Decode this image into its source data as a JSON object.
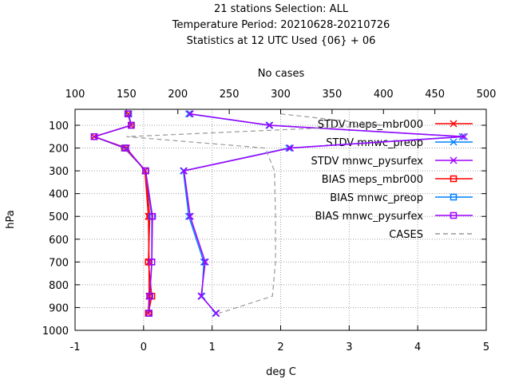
{
  "chart_data": {
    "type": "line",
    "title_lines": [
      "21 stations Selection: ALL",
      "Temperature  Period: 20210628-20210726",
      "Statistics at 12 UTC  Used {06} + 06"
    ],
    "xlabel": "deg C",
    "ylabel": "hPa",
    "x2label": "No cases",
    "xlim": [
      -1,
      5
    ],
    "ylim": [
      1000,
      30
    ],
    "x2lim": [
      100,
      500
    ],
    "x_ticks": [
      "-1",
      "0",
      "1",
      "2",
      "3",
      "4",
      "5"
    ],
    "y_ticks": [
      "100",
      "200",
      "300",
      "400",
      "500",
      "600",
      "700",
      "800",
      "900",
      "1000"
    ],
    "x2_ticks": [
      "100",
      "150",
      "200",
      "250",
      "300",
      "350",
      "400",
      "450",
      "500"
    ],
    "grid": true,
    "legend_position": "top-right",
    "series": [
      {
        "name": "STDV meps_mbr000",
        "color": "#ff0000",
        "marker": "x",
        "points": [
          [
            -0.22,
            50
          ],
          [
            -0.18,
            100
          ],
          [
            -0.72,
            150
          ],
          [
            -0.25,
            200
          ],
          [
            0.02,
            300
          ],
          [
            0.07,
            500
          ],
          [
            0.08,
            700
          ],
          [
            0.08,
            850
          ],
          [
            0.07,
            925
          ]
        ]
      },
      {
        "name": "STDV mnwc_preop",
        "color": "#0080ff",
        "marker": "x",
        "points": [
          [
            0.66,
            50
          ],
          [
            1.83,
            100
          ],
          [
            4.65,
            150
          ],
          [
            2.12,
            200
          ],
          [
            0.58,
            300
          ],
          [
            0.66,
            500
          ],
          [
            0.88,
            700
          ],
          [
            0.85,
            850
          ],
          [
            1.05,
            925
          ]
        ]
      },
      {
        "name": "STDV mnwc_pysurfex",
        "color": "#a000ff",
        "marker": "x",
        "points": [
          [
            0.68,
            50
          ],
          [
            1.84,
            100
          ],
          [
            4.68,
            150
          ],
          [
            2.14,
            200
          ],
          [
            0.59,
            300
          ],
          [
            0.68,
            500
          ],
          [
            0.9,
            700
          ],
          [
            0.84,
            850
          ],
          [
            1.06,
            925
          ]
        ]
      },
      {
        "name": "BIAS meps_mbr000",
        "color": "#ff0000",
        "marker": "square",
        "points": [
          [
            -0.22,
            50
          ],
          [
            -0.18,
            100
          ],
          [
            -0.72,
            150
          ],
          [
            -0.28,
            200
          ],
          [
            0.03,
            300
          ],
          [
            0.09,
            500
          ],
          [
            0.07,
            700
          ],
          [
            0.12,
            850
          ],
          [
            0.07,
            925
          ]
        ]
      },
      {
        "name": "BIAS mnwc_preop",
        "color": "#0080ff",
        "marker": "square",
        "points": [
          [
            -0.22,
            50
          ],
          [
            -0.18,
            100
          ],
          [
            -0.72,
            150
          ],
          [
            -0.27,
            200
          ],
          [
            0.03,
            300
          ],
          [
            0.12,
            500
          ],
          [
            0.12,
            700
          ],
          [
            0.09,
            850
          ],
          [
            0.08,
            925
          ]
        ]
      },
      {
        "name": "BIAS mnwc_pysurfex",
        "color": "#a000ff",
        "marker": "square",
        "points": [
          [
            -0.23,
            50
          ],
          [
            -0.18,
            100
          ],
          [
            -0.72,
            150
          ],
          [
            -0.26,
            200
          ],
          [
            0.03,
            300
          ],
          [
            0.13,
            500
          ],
          [
            0.12,
            700
          ],
          [
            0.09,
            850
          ],
          [
            0.08,
            925
          ]
        ]
      },
      {
        "name": "CASES",
        "color": "#999999",
        "marker": "none",
        "axis": "x2",
        "points": [
          [
            300,
            50
          ],
          [
            400,
            100
          ],
          [
            150,
            150
          ],
          [
            285,
            200
          ],
          [
            294,
            300
          ],
          [
            295,
            500
          ],
          [
            295,
            700
          ],
          [
            292,
            850
          ],
          [
            240,
            925
          ]
        ]
      }
    ]
  }
}
